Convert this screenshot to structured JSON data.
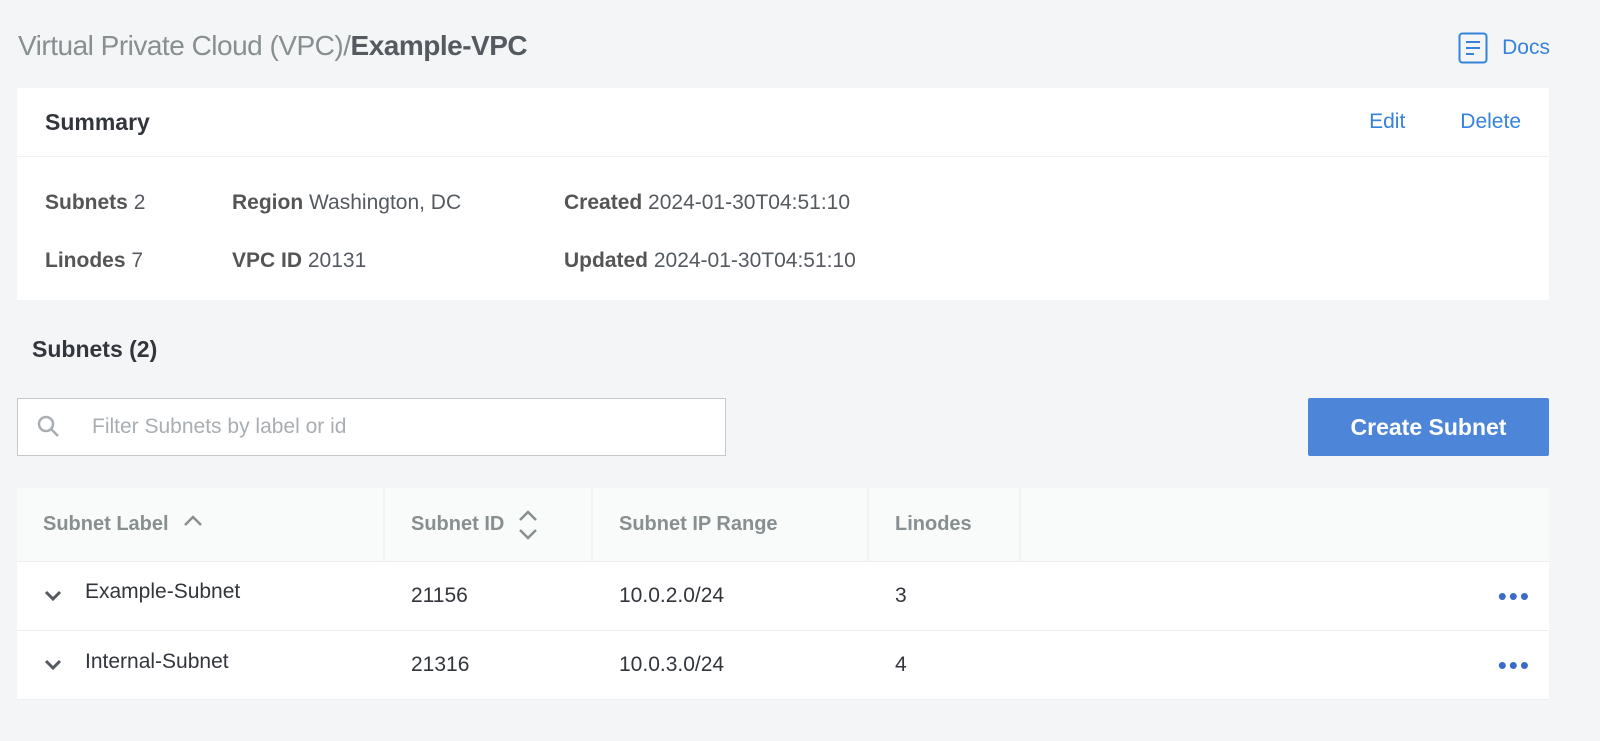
{
  "breadcrumb": {
    "parent": "Virtual Private Cloud (VPC)",
    "separator": "/",
    "current": "Example-VPC"
  },
  "docs": {
    "label": "Docs",
    "icon": "docs-icon"
  },
  "summary": {
    "title": "Summary",
    "edit": "Edit",
    "delete": "Delete",
    "fields": [
      {
        "label": "Subnets",
        "value": "2"
      },
      {
        "label": "Linodes",
        "value": "7"
      },
      {
        "label": "Region",
        "value": "Washington, DC"
      },
      {
        "label": "VPC ID",
        "value": "20131"
      },
      {
        "label": "Created",
        "value": "2024-01-30T04:51:10"
      },
      {
        "label": "Updated",
        "value": "2024-01-30T04:51:10"
      }
    ]
  },
  "subnets": {
    "title": "Subnets (2)",
    "search_placeholder": "Filter Subnets by label or id",
    "create_label": "Create Subnet",
    "columns": [
      "Subnet Label",
      "Subnet ID",
      "Subnet IP Range",
      "Linodes"
    ],
    "rows": [
      {
        "label": "Example-Subnet",
        "id": "21156",
        "range": "10.0.2.0/24",
        "linodes": "3"
      },
      {
        "label": "Internal-Subnet",
        "id": "21316",
        "range": "10.0.3.0/24",
        "linodes": "4"
      }
    ]
  },
  "colors": {
    "accent": "#3683dc",
    "button": "#4d86d8"
  }
}
